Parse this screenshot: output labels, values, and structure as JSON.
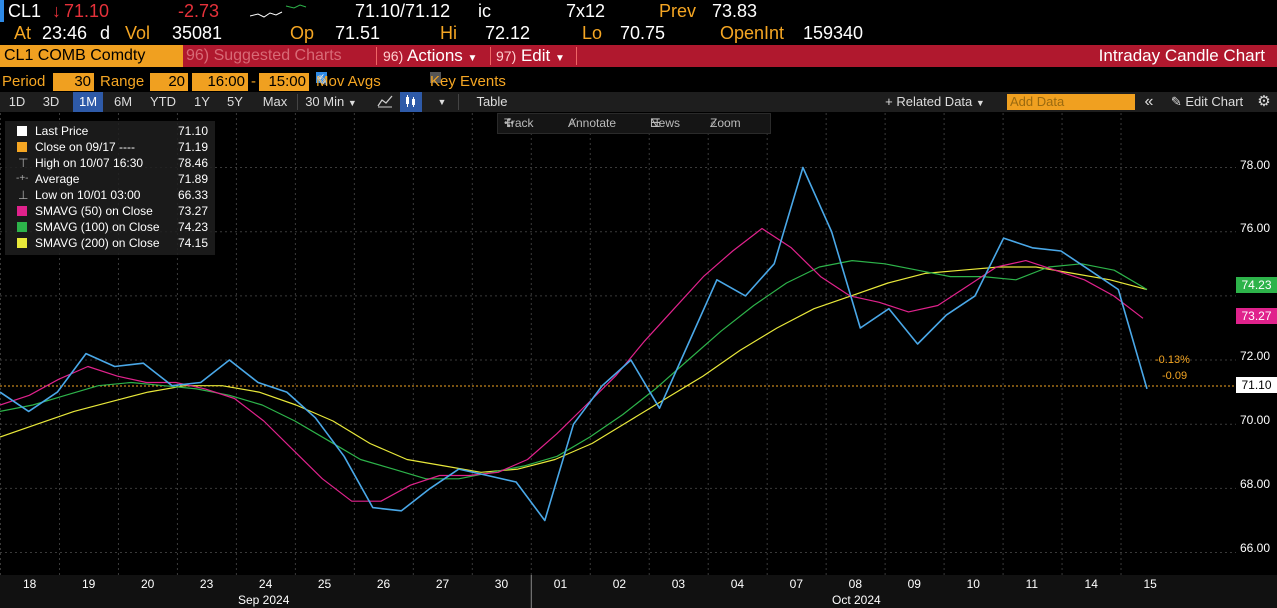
{
  "quote": {
    "ticker": "CL1",
    "arrow": "↓",
    "last": "71.10",
    "change": "-2.73",
    "bid_ask": "71.10/71.12",
    "bid_ask_suffix": "ic",
    "size": "7x12",
    "prev_label": "Prev",
    "prev": "73.83",
    "time_label": "At",
    "time": "23:46",
    "time_suffix": "d",
    "vol_label": "Vol",
    "vol": "35081",
    "open_label": "Op",
    "open": "71.51",
    "hi_label": "Hi",
    "hi": "72.12",
    "lo_label": "Lo",
    "lo": "70.75",
    "oi_label": "OpenInt",
    "oi": "159340"
  },
  "titlebar": {
    "security": "CL1 COMB Comdty",
    "suggested_num": "96)",
    "suggested": "Suggested Charts",
    "actions_num": "96)",
    "actions": "Actions",
    "edit_num": "97)",
    "edit": "Edit",
    "title": "Intraday Candle Chart"
  },
  "settings": {
    "period_label": "Period",
    "period": "30",
    "range_label": "Range",
    "range": "20",
    "from": "16:00",
    "dash": "-",
    "to": "15:00",
    "mov_avgs": "Mov Avgs",
    "key_events": "Key Events"
  },
  "toolbar": {
    "ranges": [
      "1D",
      "3D",
      "1M",
      "6M",
      "YTD",
      "1Y",
      "5Y",
      "Max"
    ],
    "active_range": "1M",
    "interval": "30 Min",
    "table": "Table",
    "related_data": "Related Data",
    "add_data_placeholder": "Add Data",
    "edit_chart": "Edit Chart"
  },
  "chart_tools": {
    "track": "Track",
    "annotate": "Annotate",
    "news": "News",
    "zoom": "Zoom"
  },
  "legend": {
    "items": [
      {
        "label": "Last Price",
        "value": "71.10",
        "color": "#ffffff"
      },
      {
        "label": "Close on 09/17 ----",
        "value": "71.19",
        "color": "#f5a623"
      },
      {
        "label": "High on 10/07 16:30",
        "value": "78.46",
        "color": "#bbbbbb"
      },
      {
        "label": "Average",
        "value": "71.89",
        "color": "#bbbbbb"
      },
      {
        "label": "Low on 10/01 03:00",
        "value": "66.33",
        "color": "#bbbbbb"
      },
      {
        "label": "SMAVG (50)  on Close",
        "value": "73.27",
        "color": "#e0228c"
      },
      {
        "label": "SMAVG (100)  on Close",
        "value": "74.23",
        "color": "#2db34a"
      },
      {
        "label": "SMAVG (200)  on Close",
        "value": "74.15",
        "color": "#e8e83a"
      }
    ]
  },
  "annotations": {
    "pct": "-0.13%",
    "abs": "-0.09"
  },
  "price_tags": {
    "sma100": "74.23",
    "sma50": "73.27",
    "last": "71.10"
  },
  "chart_data": {
    "type": "line",
    "y_ticks": [
      "78.00",
      "76.00",
      "74.00",
      "72.00",
      "70.00",
      "68.00",
      "66.00"
    ],
    "ylim": [
      65.3,
      79.7
    ],
    "x_tick_labels": [
      "18",
      "19",
      "20",
      "23",
      "24",
      "25",
      "26",
      "27",
      "30",
      "01",
      "02",
      "03",
      "04",
      "07",
      "08",
      "09",
      "10",
      "11",
      "14",
      "15"
    ],
    "month_labels": [
      "Sep 2024",
      "Oct 2024"
    ],
    "series": [
      {
        "name": "Last Price",
        "color": "#4aa8e8",
        "values": [
          71.0,
          70.4,
          71.0,
          72.2,
          71.8,
          71.9,
          71.2,
          71.3,
          72.0,
          71.3,
          71.0,
          70.2,
          69.0,
          67.4,
          67.3,
          68.0,
          68.6,
          68.4,
          68.2,
          67.0,
          70.0,
          71.2,
          72.0,
          70.5,
          72.5,
          74.5,
          74.0,
          75.0,
          78.0,
          76.0,
          73.0,
          73.6,
          72.5,
          73.4,
          74.0,
          75.8,
          75.5,
          75.4,
          74.8,
          74.2,
          71.1
        ]
      },
      {
        "name": "SMAVG (50)",
        "color": "#e0228c",
        "values": [
          70.6,
          70.9,
          71.4,
          71.8,
          71.5,
          71.3,
          71.3,
          71.1,
          70.8,
          70.1,
          69.2,
          68.3,
          67.6,
          67.6,
          68.1,
          68.4,
          68.4,
          68.5,
          68.9,
          69.7,
          70.6,
          71.5,
          72.6,
          73.6,
          74.6,
          75.4,
          76.1,
          75.5,
          74.6,
          74.0,
          73.8,
          73.5,
          73.7,
          74.3,
          74.9,
          75.1,
          74.8,
          74.5,
          74.0,
          73.3
        ]
      },
      {
        "name": "SMAVG (100)",
        "color": "#2db34a",
        "values": [
          70.4,
          70.6,
          70.9,
          71.2,
          71.3,
          71.2,
          71.1,
          70.9,
          70.6,
          70.1,
          69.5,
          68.9,
          68.6,
          68.3,
          68.3,
          68.5,
          68.7,
          69.0,
          69.6,
          70.3,
          71.1,
          72.0,
          72.9,
          73.7,
          74.4,
          74.9,
          75.1,
          75.0,
          74.8,
          74.6,
          74.6,
          74.5,
          74.9,
          75.0,
          74.8,
          74.2
        ]
      },
      {
        "name": "SMAVG (200)",
        "color": "#e8e83a",
        "values": [
          69.6,
          70.0,
          70.4,
          70.7,
          71.0,
          71.2,
          71.2,
          71.0,
          70.6,
          70.1,
          69.4,
          68.9,
          68.7,
          68.5,
          68.6,
          68.9,
          69.4,
          70.1,
          70.8,
          71.5,
          72.3,
          73.0,
          73.6,
          74.0,
          74.4,
          74.7,
          74.8,
          74.9,
          74.9,
          74.7,
          74.5,
          74.2
        ]
      }
    ],
    "reference_line": {
      "label": "Close on 09/17",
      "value": 71.19,
      "color": "#f5a623"
    },
    "grid": true,
    "legend_position": "top-left"
  }
}
